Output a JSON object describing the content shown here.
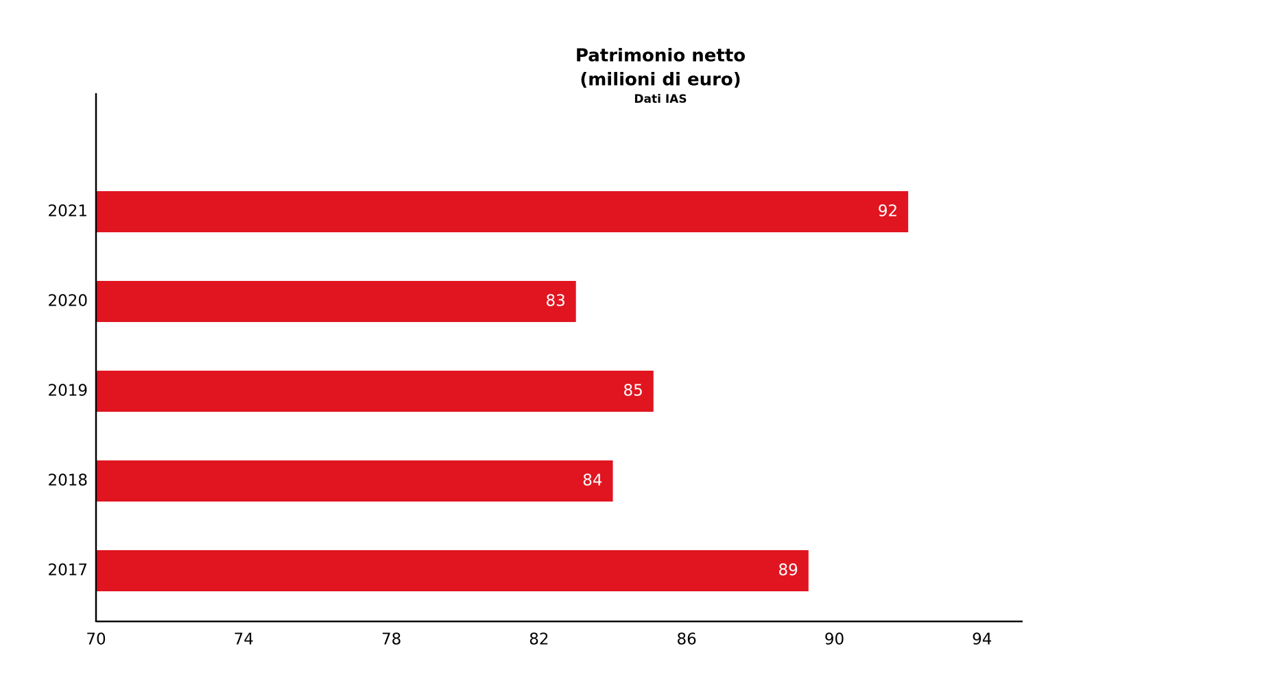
{
  "chart_data": {
    "type": "hbar",
    "title": [
      "Patrimonio netto",
      "(milioni di euro)"
    ],
    "subtitle": "Dati IAS",
    "categories": [
      "2021",
      "2020",
      "2019",
      "2018",
      "2017"
    ],
    "values": [
      92,
      83,
      85.1,
      84,
      89.3
    ],
    "value_labels": [
      "92",
      "83",
      "85",
      "84",
      "89"
    ],
    "color": "#e01520",
    "xlim": [
      70,
      95.1
    ],
    "xticks": [
      70,
      74,
      78,
      82,
      86,
      90,
      94
    ],
    "grid": false
  }
}
